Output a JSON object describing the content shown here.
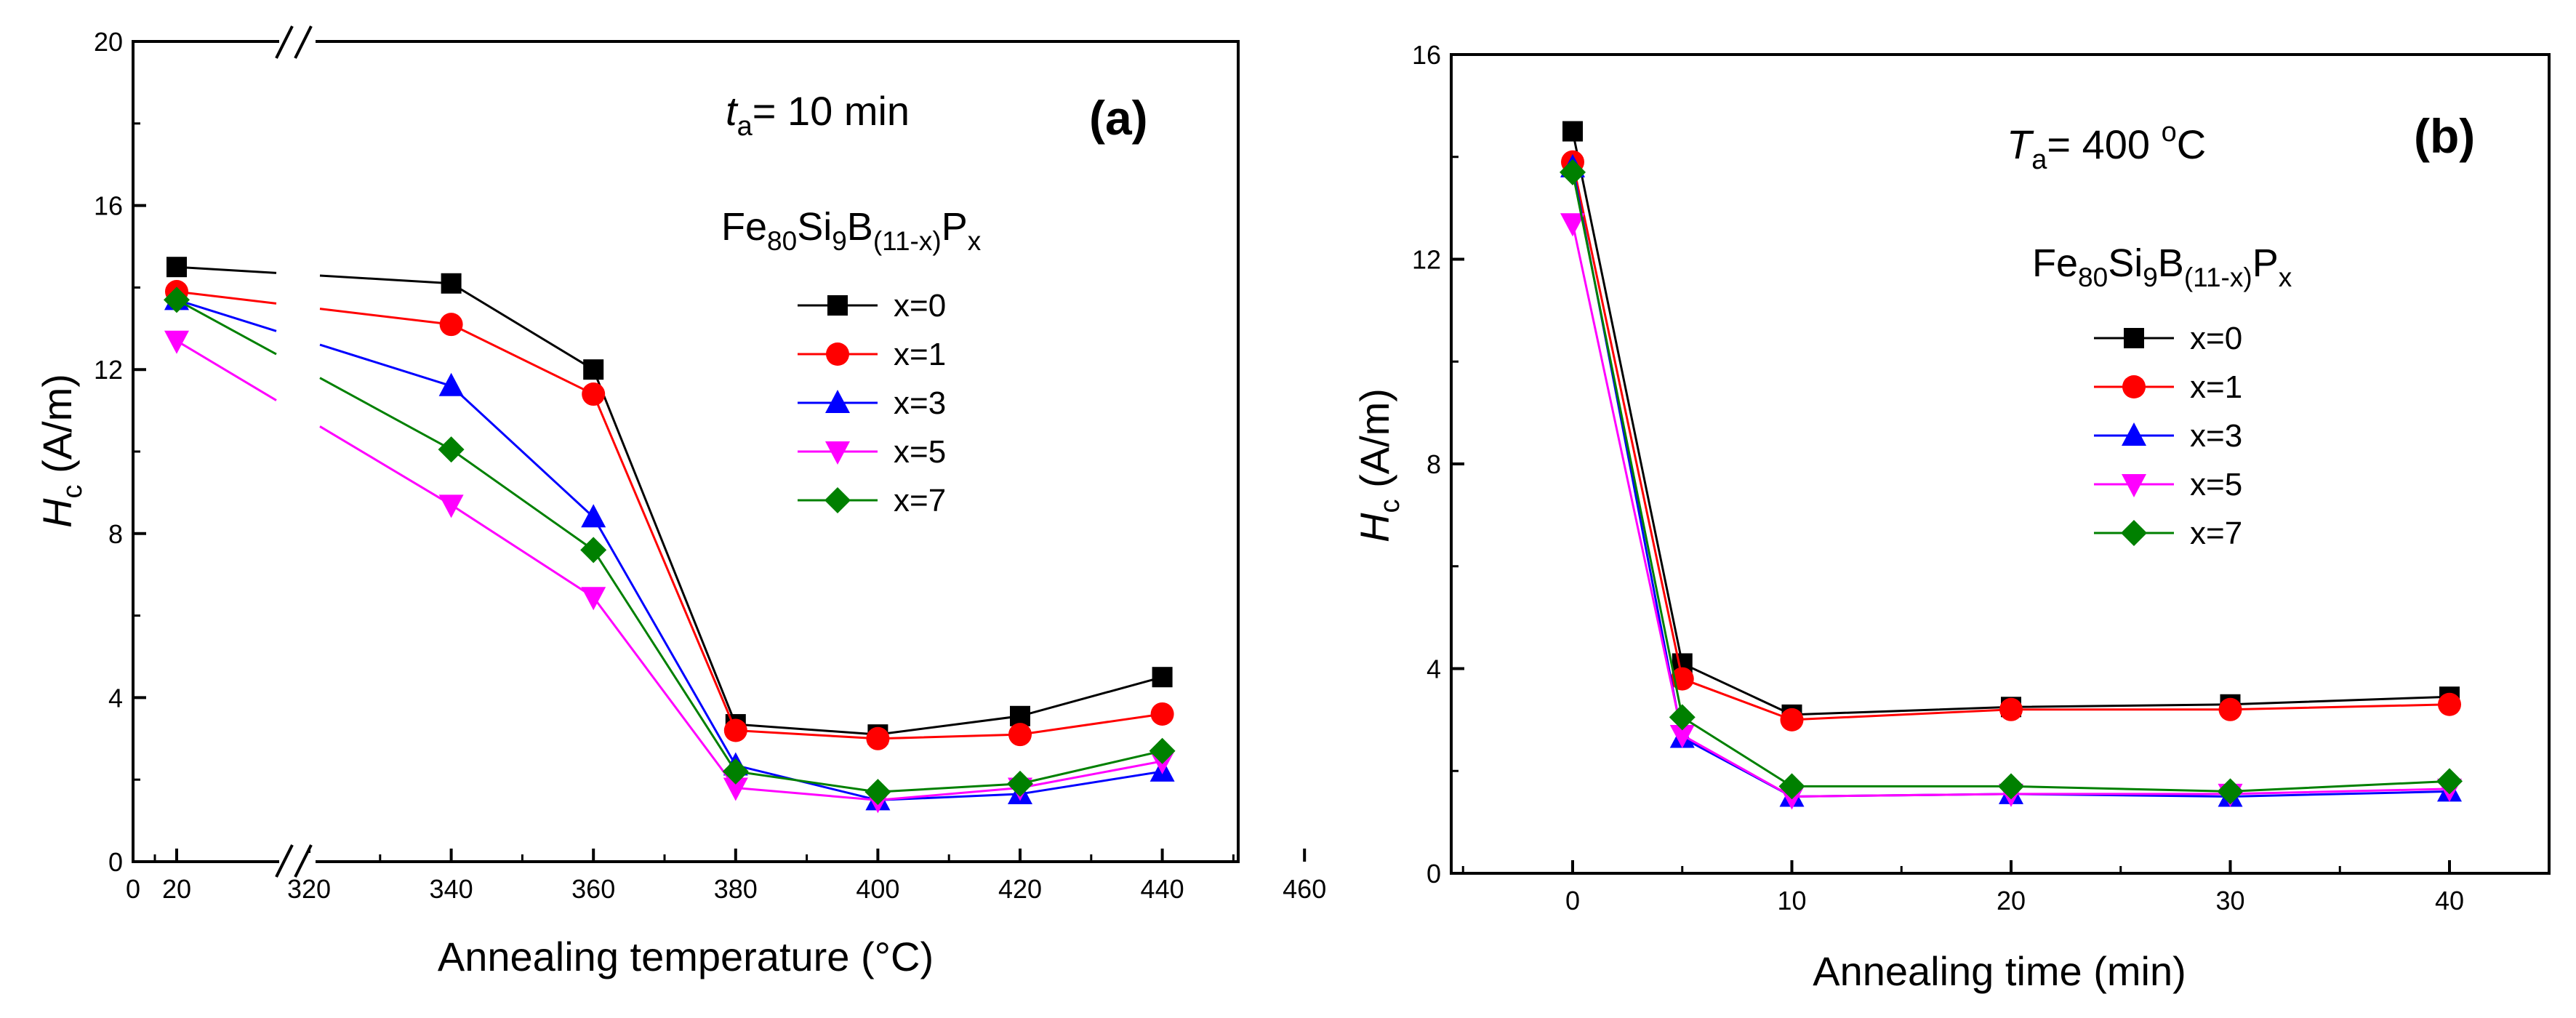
{
  "chart_data": [
    {
      "type": "line",
      "panel_label": "(a)",
      "annotation": {
        "symbol": "t",
        "subscript": "a",
        "text": "= 10 min"
      },
      "legend_title": {
        "base": "Fe",
        "sub1": "80",
        "el2": "Si",
        "sub2": "9",
        "el3": "B",
        "sub3": "(11-x)",
        "el4": "P",
        "sub4": "x"
      },
      "xlabel": "Annealing temperature (°C)",
      "ylabel": {
        "symbol": "H",
        "subscript": "c",
        "unit": "(A/m)"
      },
      "ylim": [
        0,
        20
      ],
      "y_ticks": [
        "0",
        "4",
        "8",
        "12",
        "16",
        "20"
      ],
      "x_ticks": [
        "0",
        "20",
        "320",
        "340",
        "360",
        "380",
        "400",
        "420",
        "440",
        "460"
      ],
      "axis_break": "x between 20 and 320",
      "x": [
        20,
        340,
        360,
        380,
        400,
        420,
        440
      ],
      "series": [
        {
          "name": "x=0",
          "color": "#000000",
          "marker": "square",
          "values": [
            14.5,
            14.1,
            12.0,
            3.35,
            3.1,
            3.55,
            4.5
          ]
        },
        {
          "name": "x=1",
          "color": "#ff0000",
          "marker": "circle",
          "values": [
            13.9,
            13.1,
            11.4,
            3.2,
            3.0,
            3.1,
            3.6
          ]
        },
        {
          "name": "x=3",
          "color": "#0000ff",
          "marker": "triangle-up",
          "values": [
            13.7,
            11.6,
            8.4,
            2.35,
            1.5,
            1.65,
            2.2
          ]
        },
        {
          "name": "x=5",
          "color": "#ff00ff",
          "marker": "triangle-down",
          "values": [
            12.7,
            8.7,
            6.45,
            1.8,
            1.5,
            1.8,
            2.45
          ]
        },
        {
          "name": "x=7",
          "color": "#008000",
          "marker": "diamond",
          "values": [
            13.7,
            10.05,
            7.6,
            2.2,
            1.7,
            1.9,
            2.7
          ]
        }
      ]
    },
    {
      "type": "line",
      "panel_label": "(b)",
      "annotation": {
        "symbol": "T",
        "subscript": "a",
        "text": "= 400 ",
        "sup": "o",
        "unit": "C"
      },
      "legend_title": {
        "base": "Fe",
        "sub1": "80",
        "el2": "Si",
        "sub2": "9",
        "el3": "B",
        "sub3": "(11-x)",
        "el4": "P",
        "sub4": "x"
      },
      "xlabel": "Annealing time (min)",
      "ylabel": {
        "symbol": "H",
        "subscript": "c",
        "unit": "(A/m)"
      },
      "xlim": [
        -5,
        42
      ],
      "ylim": [
        0,
        16
      ],
      "y_ticks": [
        "0",
        "4",
        "8",
        "12",
        "16"
      ],
      "x_ticks": [
        "0",
        "10",
        "20",
        "30",
        "40"
      ],
      "x": [
        0,
        5,
        10,
        20,
        30,
        40
      ],
      "series": [
        {
          "name": "x=0",
          "color": "#000000",
          "marker": "square",
          "values": [
            14.5,
            4.1,
            3.1,
            3.25,
            3.3,
            3.45
          ]
        },
        {
          "name": "x=1",
          "color": "#ff0000",
          "marker": "circle",
          "values": [
            13.9,
            3.8,
            3.0,
            3.2,
            3.2,
            3.3
          ]
        },
        {
          "name": "x=3",
          "color": "#0000ff",
          "marker": "triangle-up",
          "values": [
            13.8,
            2.65,
            1.5,
            1.55,
            1.5,
            1.6
          ]
        },
        {
          "name": "x=5",
          "color": "#ff00ff",
          "marker": "triangle-down",
          "values": [
            12.7,
            2.7,
            1.5,
            1.55,
            1.55,
            1.65
          ]
        },
        {
          "name": "x=7",
          "color": "#008000",
          "marker": "diamond",
          "values": [
            13.7,
            3.05,
            1.7,
            1.7,
            1.6,
            1.8
          ]
        }
      ]
    }
  ]
}
